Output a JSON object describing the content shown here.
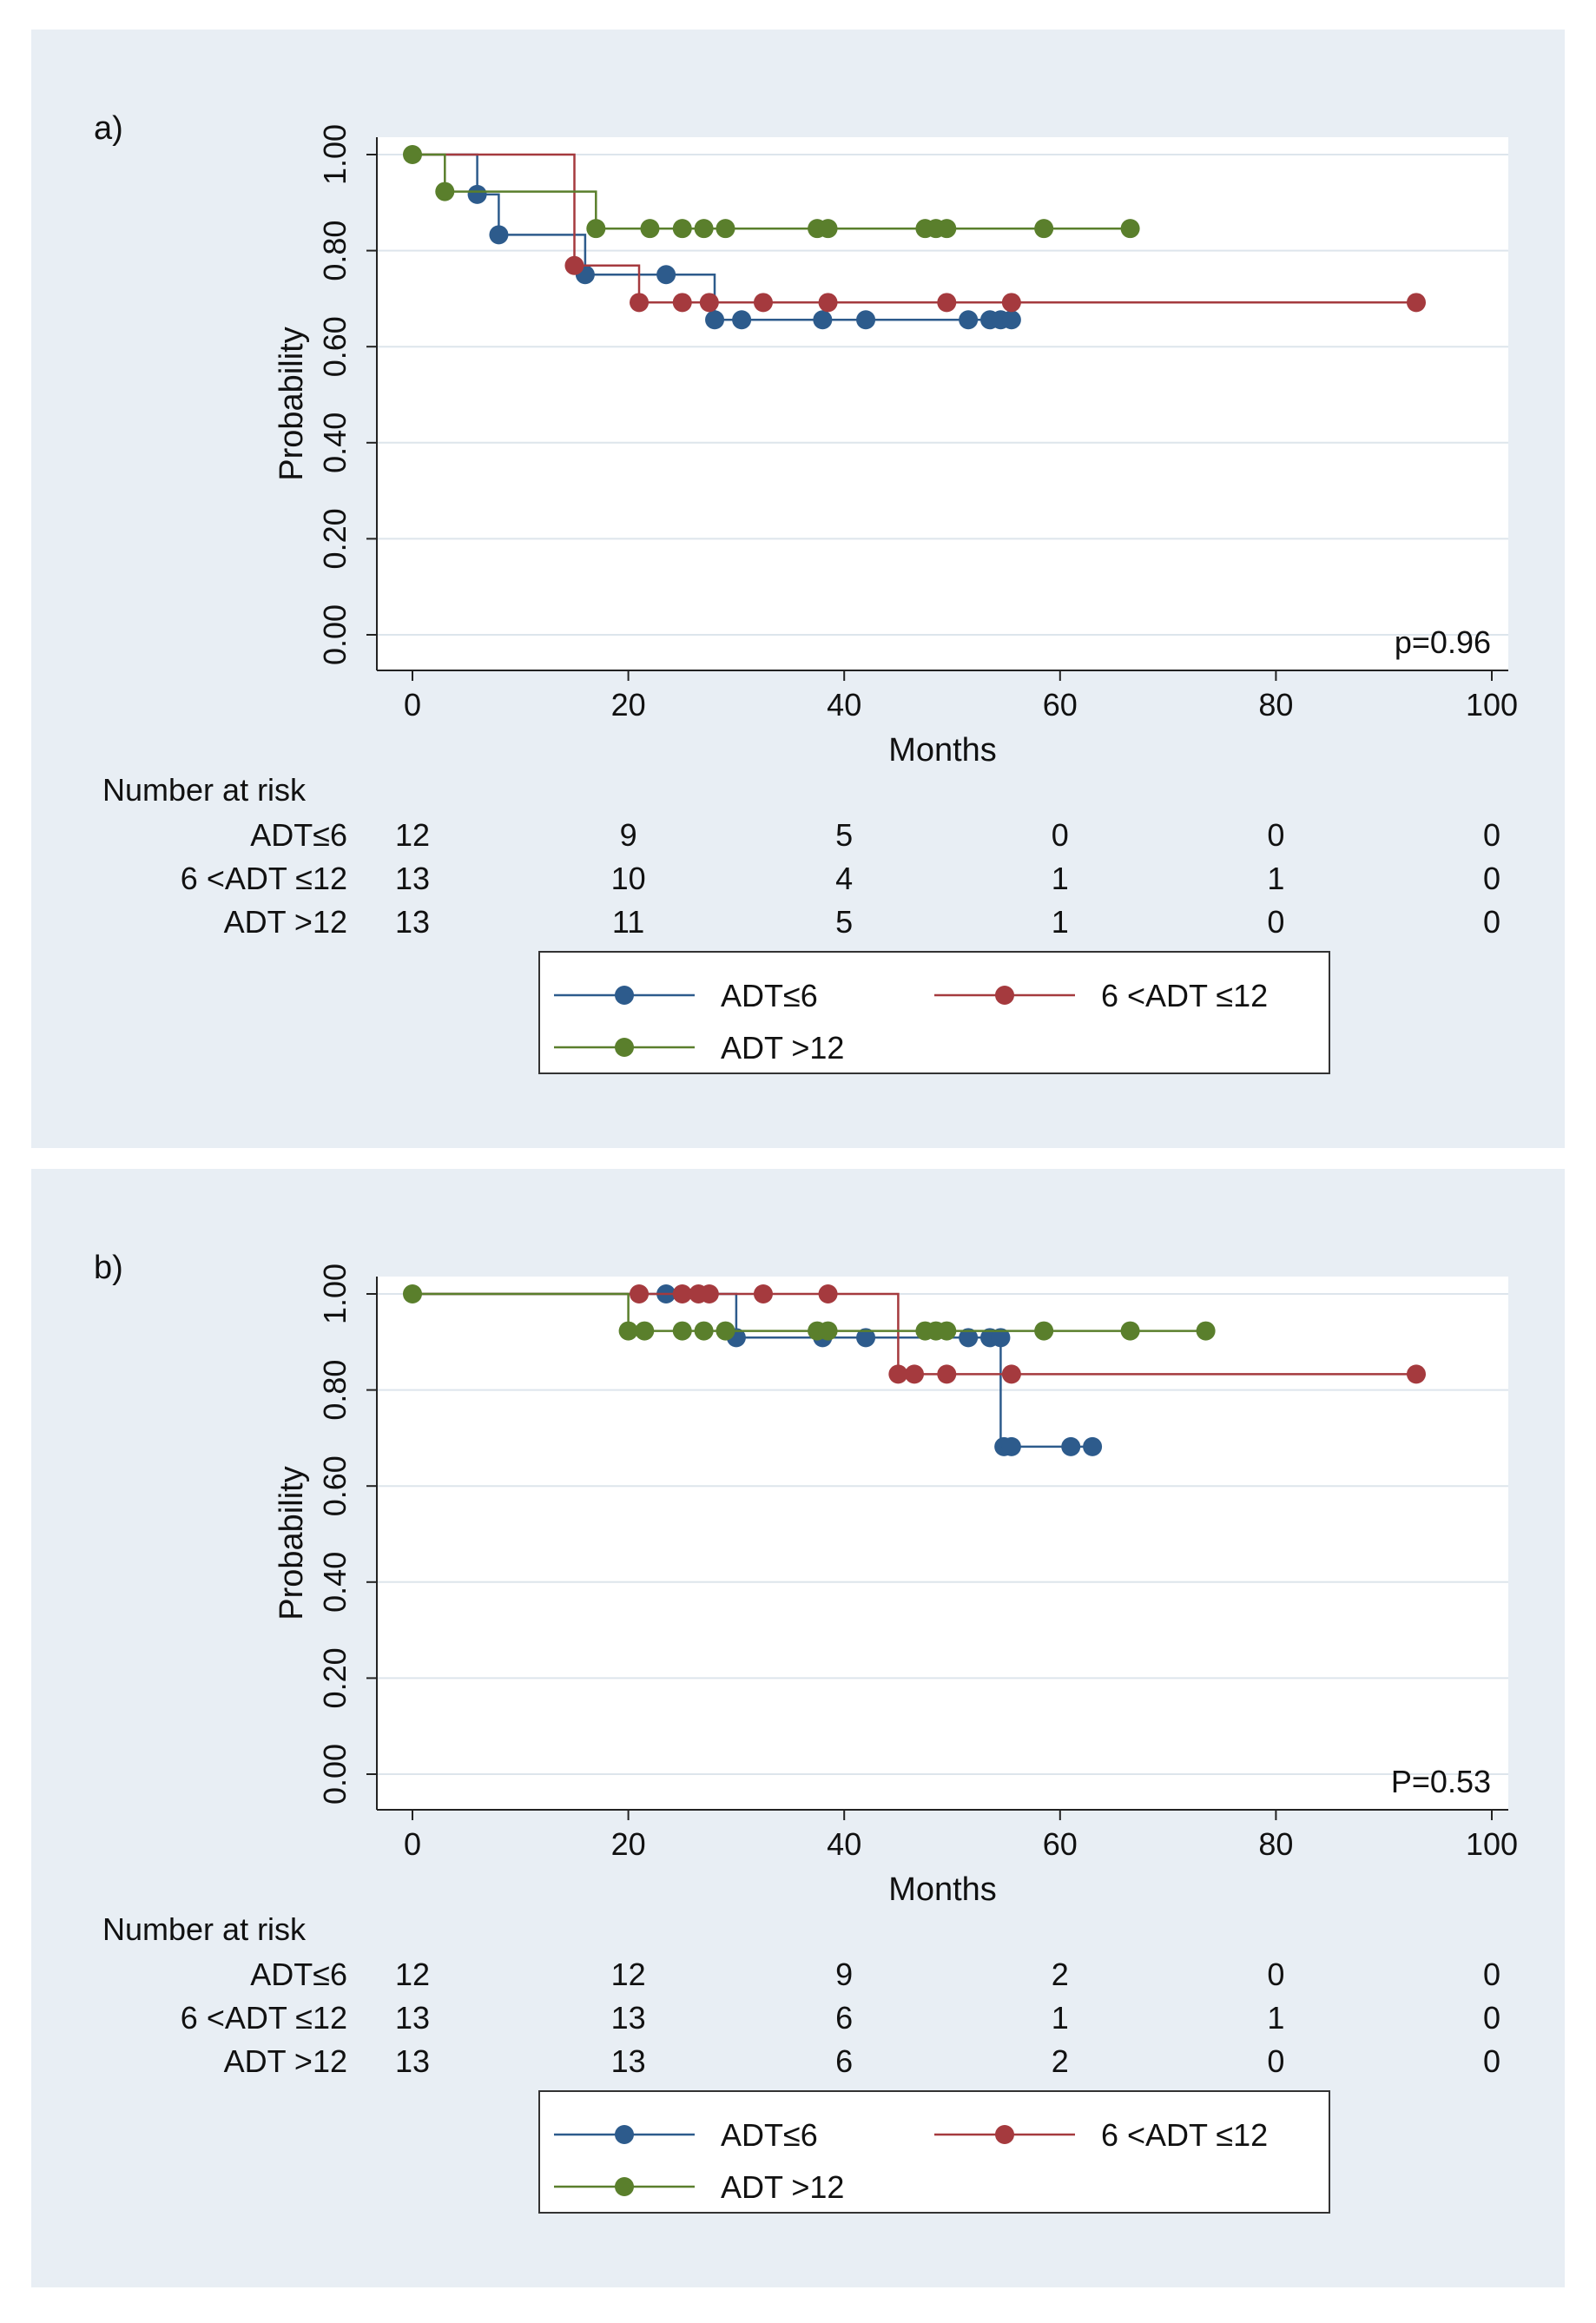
{
  "chart_data": [
    {
      "type": "line",
      "panel_label": "a)",
      "xlabel": "Months",
      "ylabel": "Probability",
      "xlim": [
        0,
        100
      ],
      "ylim": [
        0,
        1
      ],
      "x_ticks": [
        "0",
        "20",
        "40",
        "60",
        "80",
        "100"
      ],
      "y_ticks": [
        "0.00",
        "0.20",
        "0.40",
        "0.60",
        "0.80",
        "1.00"
      ],
      "annotation": "p=0.96",
      "grid": true,
      "series": [
        {
          "name": "ADT≤6",
          "color": "#2d5b8c",
          "steps": [
            [
              0,
              1.0
            ],
            [
              6,
              1.0
            ],
            [
              6,
              0.917
            ],
            [
              8,
              0.917
            ],
            [
              8,
              0.833
            ],
            [
              16,
              0.833
            ],
            [
              16,
              0.75
            ],
            [
              28,
              0.75
            ],
            [
              28,
              0.656
            ],
            [
              56,
              0.656
            ]
          ],
          "censored": [
            [
              6,
              0.917
            ],
            [
              8,
              0.833
            ],
            [
              16,
              0.75
            ],
            [
              23.5,
              0.75
            ],
            [
              28,
              0.656
            ],
            [
              30.5,
              0.656
            ],
            [
              38,
              0.656
            ],
            [
              42,
              0.656
            ],
            [
              51.5,
              0.656
            ],
            [
              53.5,
              0.656
            ],
            [
              54.5,
              0.656
            ],
            [
              55.5,
              0.656
            ]
          ]
        },
        {
          "name": "6 <ADT ≤12",
          "color": "#a53a3e",
          "steps": [
            [
              0,
              1.0
            ],
            [
              15,
              1.0
            ],
            [
              15,
              0.769
            ],
            [
              21,
              0.769
            ],
            [
              21,
              0.692
            ],
            [
              93,
              0.692
            ]
          ],
          "censored": [
            [
              15,
              0.769
            ],
            [
              21,
              0.692
            ],
            [
              25,
              0.692
            ],
            [
              27.5,
              0.692
            ],
            [
              32.5,
              0.692
            ],
            [
              38.5,
              0.692
            ],
            [
              49.5,
              0.692
            ],
            [
              55.5,
              0.692
            ],
            [
              93,
              0.692
            ]
          ]
        },
        {
          "name": "ADT >12",
          "color": "#5a7f2c",
          "steps": [
            [
              0,
              1.0
            ],
            [
              3,
              1.0
            ],
            [
              3,
              0.923
            ],
            [
              17,
              0.923
            ],
            [
              17,
              0.846
            ],
            [
              66.5,
              0.846
            ]
          ],
          "censored": [
            [
              0,
              1.0
            ],
            [
              3,
              0.923
            ],
            [
              17,
              0.846
            ],
            [
              22,
              0.846
            ],
            [
              25,
              0.846
            ],
            [
              27,
              0.846
            ],
            [
              29,
              0.846
            ],
            [
              37.5,
              0.846
            ],
            [
              38.5,
              0.846
            ],
            [
              47.5,
              0.846
            ],
            [
              48.5,
              0.846
            ],
            [
              49.5,
              0.846
            ],
            [
              58.5,
              0.846
            ],
            [
              66.5,
              0.846
            ]
          ]
        }
      ],
      "risk_table": {
        "title": "Number at risk",
        "rows": [
          {
            "label": "ADT≤6",
            "values": [
              "12",
              "9",
              "5",
              "0",
              "0",
              "0"
            ]
          },
          {
            "label": "6 <ADT ≤12",
            "values": [
              "13",
              "10",
              "4",
              "1",
              "1",
              "0"
            ]
          },
          {
            "label": "ADT >12",
            "values": [
              "13",
              "11",
              "5",
              "1",
              "0",
              "0"
            ]
          }
        ]
      },
      "legend": [
        "ADT≤6",
        "6 <ADT ≤12",
        "ADT >12"
      ]
    },
    {
      "type": "line",
      "panel_label": "b)",
      "xlabel": "Months",
      "ylabel": "Probability",
      "xlim": [
        0,
        100
      ],
      "ylim": [
        0,
        1
      ],
      "x_ticks": [
        "0",
        "20",
        "40",
        "60",
        "80",
        "100"
      ],
      "y_ticks": [
        "0.00",
        "0.20",
        "0.40",
        "0.60",
        "0.80",
        "1.00"
      ],
      "annotation": "P=0.53",
      "grid": true,
      "series": [
        {
          "name": "ADT≤6",
          "color": "#2d5b8c",
          "steps": [
            [
              0,
              1.0
            ],
            [
              30,
              1.0
            ],
            [
              30,
              0.909
            ],
            [
              54.5,
              0.909
            ],
            [
              54.5,
              0.682
            ],
            [
              63,
              0.682
            ]
          ],
          "censored": [
            [
              23.5,
              1.0
            ],
            [
              30,
              0.909
            ],
            [
              38,
              0.909
            ],
            [
              42,
              0.909
            ],
            [
              51.5,
              0.909
            ],
            [
              53.5,
              0.909
            ],
            [
              54.5,
              0.909
            ],
            [
              54.8,
              0.682
            ],
            [
              55.5,
              0.682
            ],
            [
              61,
              0.682
            ],
            [
              63,
              0.682
            ]
          ]
        },
        {
          "name": "6 <ADT ≤12",
          "color": "#a53a3e",
          "steps": [
            [
              0,
              1.0
            ],
            [
              45,
              1.0
            ],
            [
              45,
              0.833
            ],
            [
              93,
              0.833
            ]
          ],
          "censored": [
            [
              21,
              1.0
            ],
            [
              25,
              1.0
            ],
            [
              26.5,
              1.0
            ],
            [
              27.5,
              1.0
            ],
            [
              32.5,
              1.0
            ],
            [
              38.5,
              1.0
            ],
            [
              45,
              0.833
            ],
            [
              46.5,
              0.833
            ],
            [
              49.5,
              0.833
            ],
            [
              55.5,
              0.833
            ],
            [
              93,
              0.833
            ]
          ]
        },
        {
          "name": "ADT >12",
          "color": "#5a7f2c",
          "steps": [
            [
              0,
              1.0
            ],
            [
              20,
              1.0
            ],
            [
              20,
              0.923
            ],
            [
              73.5,
              0.923
            ]
          ],
          "censored": [
            [
              0,
              1.0
            ],
            [
              20,
              0.923
            ],
            [
              21.5,
              0.923
            ],
            [
              25,
              0.923
            ],
            [
              27,
              0.923
            ],
            [
              29,
              0.923
            ],
            [
              37.5,
              0.923
            ],
            [
              38.5,
              0.923
            ],
            [
              47.5,
              0.923
            ],
            [
              48.5,
              0.923
            ],
            [
              49.5,
              0.923
            ],
            [
              58.5,
              0.923
            ],
            [
              66.5,
              0.923
            ],
            [
              73.5,
              0.923
            ]
          ]
        }
      ],
      "risk_table": {
        "title": "Number at risk",
        "rows": [
          {
            "label": "ADT≤6",
            "values": [
              "12",
              "12",
              "9",
              "2",
              "0",
              "0"
            ]
          },
          {
            "label": "6 <ADT ≤12",
            "values": [
              "13",
              "13",
              "6",
              "1",
              "1",
              "0"
            ]
          },
          {
            "label": "ADT >12",
            "values": [
              "13",
              "13",
              "6",
              "2",
              "0",
              "0"
            ]
          }
        ]
      },
      "legend": [
        "ADT≤6",
        "6 <ADT ≤12",
        "ADT >12"
      ]
    }
  ]
}
